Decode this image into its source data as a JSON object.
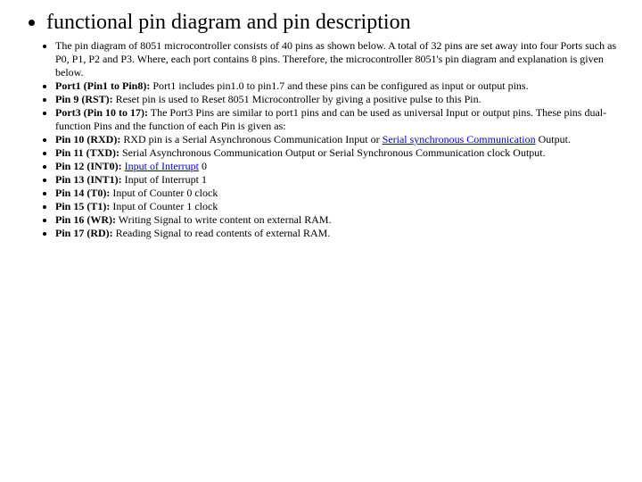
{
  "title": "functional pin diagram and pin description",
  "items": [
    {
      "pre": "",
      "bold": "",
      "post": "The pin diagram of 8051 microcontroller consists of 40 pins as shown below. A total of 32 pins are set away into four Ports such as P0, P1, P2 and P3. Where, each port contains 8 pins. Therefore, the microcontroller 8051's pin diagram and explanation is given below."
    },
    {
      "pre": "",
      "bold": "Port1 (Pin1 to Pin8):",
      "post": " Port1 includes pin1.0 to pin1.7 and these pins can be configured as input or output pins."
    },
    {
      "pre": "",
      "bold": "Pin 9 (RST):",
      "post": " Reset pin is used to Reset 8051 Microcontroller by giving a positive pulse to this Pin."
    },
    {
      "pre": "",
      "bold": "Port3 (Pin 10 to 17):",
      "post": " The Port3 Pins are similar to port1 pins and can be used as universal Input or output pins. These pins dual-function Pins and the function of each Pin is given as:"
    },
    {
      "pre": "",
      "bold": "Pin 10 (RXD):",
      "post_parts": [
        {
          "t": " RXD pin is a Serial Asynchronous Communication Input or ",
          "link": false
        },
        {
          "t": "Serial synchronous Communication",
          "link": true
        },
        {
          "t": " Output.",
          "link": false
        }
      ]
    },
    {
      "pre": "",
      "bold": "Pin 11 (TXD):",
      "post": " Serial Asynchronous Communication Output or Serial Synchronous Communication clock Output."
    },
    {
      "pre": "",
      "bold": "Pin 12 (INT0):",
      "post_parts": [
        {
          "t": " ",
          "link": false
        },
        {
          "t": "Input of Interrupt",
          "link": true
        },
        {
          "t": " 0",
          "link": false
        }
      ]
    },
    {
      "pre": "",
      "bold": "Pin 13 (INT1):",
      "post": " Input of Interrupt 1"
    },
    {
      "pre": "",
      "bold": "Pin 14 (T0):",
      "post": " Input of Counter 0 clock"
    },
    {
      "pre": "",
      "bold": "Pin 15 (T1):",
      "post": " Input of Counter 1 clock"
    },
    {
      "pre": "",
      "bold": "Pin 16 (WR):",
      "post": " Writing Signal to write content on external RAM."
    },
    {
      "pre": "",
      "bold": "Pin 17 (RD):",
      "post": " Reading Signal to read contents of external RAM."
    }
  ]
}
